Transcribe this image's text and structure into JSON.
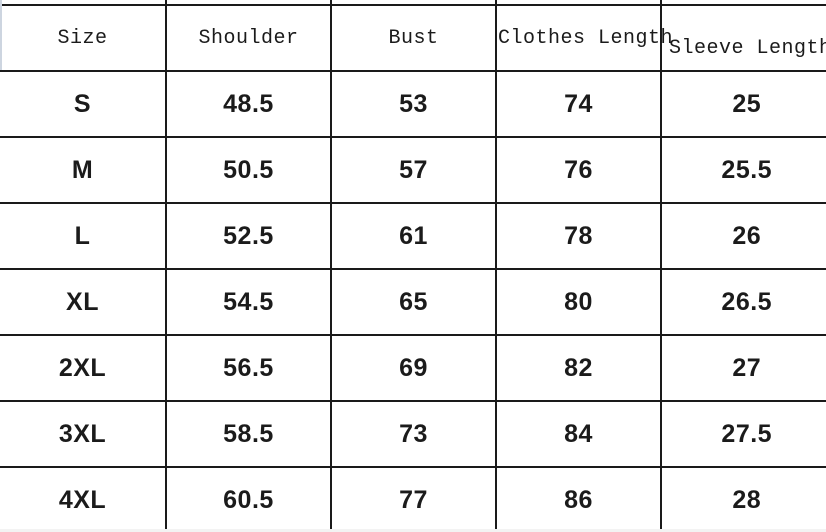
{
  "colors": {
    "border": "#1a1a1a",
    "text": "#1b1b1b",
    "background": "#ffffff"
  },
  "chart_data": {
    "type": "table",
    "columns": [
      "Size",
      "Shoulder",
      "Bust",
      "Clothes Length",
      "Sleeve Length"
    ],
    "rows": [
      [
        "S",
        "48.5",
        "53",
        "74",
        "25"
      ],
      [
        "M",
        "50.5",
        "57",
        "76",
        "25.5"
      ],
      [
        "L",
        "52.5",
        "61",
        "78",
        "26"
      ],
      [
        "XL",
        "54.5",
        "65",
        "80",
        "26.5"
      ],
      [
        "2XL",
        "56.5",
        "69",
        "82",
        "27"
      ],
      [
        "3XL",
        "58.5",
        "73",
        "84",
        "27.5"
      ],
      [
        "4XL",
        "60.5",
        "77",
        "86",
        "28"
      ]
    ]
  }
}
